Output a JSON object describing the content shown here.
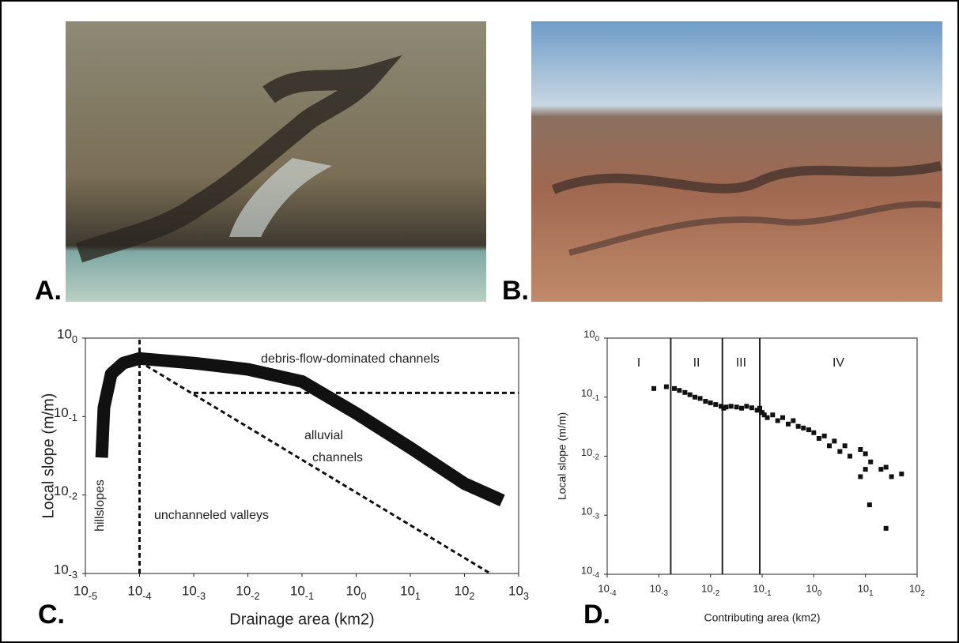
{
  "panel_labels": [
    "A.",
    "B.",
    "C.",
    "D."
  ],
  "chart_data": [
    {
      "type": "line",
      "log": true,
      "ylabel": "Local slope (m/m)",
      "xlabel": "Drainage area (km2)",
      "xlim": [
        1e-05,
        1000
      ],
      "ylim": [
        0.001,
        1
      ],
      "xticks": [
        {
          "value": 1e-05,
          "label": "10",
          "exponent": "-5"
        },
        {
          "value": 0.0001,
          "label": "10",
          "exponent": "-4"
        },
        {
          "value": 0.001,
          "label": "10",
          "exponent": "-3"
        },
        {
          "value": 0.01,
          "label": "10",
          "exponent": "-2"
        },
        {
          "value": 0.1,
          "label": "10",
          "exponent": "-1"
        },
        {
          "value": 1,
          "label": "10",
          "exponent": "0"
        },
        {
          "value": 10,
          "label": "10",
          "exponent": "1"
        },
        {
          "value": 100,
          "label": "10",
          "exponent": "2"
        },
        {
          "value": 1000,
          "label": "10",
          "exponent": "3"
        }
      ],
      "yticks": [
        {
          "value": 0.001,
          "label": "10",
          "exponent": "-3"
        },
        {
          "value": 0.01,
          "label": "10",
          "exponent": "-2"
        },
        {
          "value": 0.1,
          "label": "10",
          "exponent": "-1"
        },
        {
          "value": 1,
          "label": "10",
          "exponent": "0"
        }
      ],
      "series": [
        {
          "color": "#111",
          "style": "thick",
          "x": [
            2e-05,
            2.2e-05,
            3e-05,
            5e-05,
            0.0001,
            0.001,
            0.01,
            0.1,
            1,
            10,
            100,
            500
          ],
          "values": [
            0.03,
            0.13,
            0.35,
            0.48,
            0.55,
            0.48,
            0.4,
            0.28,
            0.11,
            0.04,
            0.014,
            0.0085
          ]
        },
        {
          "color": "#111",
          "style": "dashed",
          "x": [
            0.0001,
            0.0001
          ],
          "values": [
            0.001,
            1
          ]
        },
        {
          "color": "#111",
          "style": "dashed",
          "x": [
            0.001,
            1000
          ],
          "values": [
            0.2,
            0.2
          ]
        },
        {
          "color": "#111",
          "style": "dashed",
          "x": [
            0.0001,
            300
          ],
          "values": [
            0.5,
            0.001
          ]
        }
      ],
      "annotations": [
        "debris-flow-dominated channels",
        "alluvial",
        "channels",
        "unchanneled valleys",
        "hillslopes"
      ]
    },
    {
      "type": "scatter",
      "log": true,
      "ylabel": "Local slope (m/m)",
      "xlabel": "Contributing area (km2)",
      "xlim": [
        0.0001,
        100
      ],
      "ylim": [
        0.0001,
        1
      ],
      "xticks": [
        {
          "value": 0.0001,
          "label": "10",
          "exponent": "-4"
        },
        {
          "value": 0.001,
          "label": "10",
          "exponent": "-3"
        },
        {
          "value": 0.01,
          "label": "10",
          "exponent": "-2"
        },
        {
          "value": 0.1,
          "label": "10",
          "exponent": "-1"
        },
        {
          "value": 1,
          "label": "10",
          "exponent": "0"
        },
        {
          "value": 10,
          "label": "10",
          "exponent": "1"
        },
        {
          "value": 100,
          "label": "10",
          "exponent": "2"
        }
      ],
      "yticks": [
        {
          "value": 0.0001,
          "label": "10",
          "exponent": "-4"
        },
        {
          "value": 0.001,
          "label": "10",
          "exponent": "-3"
        },
        {
          "value": 0.01,
          "label": "10",
          "exponent": "-2"
        },
        {
          "value": 0.1,
          "label": "10",
          "exponent": "-1"
        },
        {
          "value": 1,
          "label": "10",
          "exponent": "0"
        }
      ],
      "vlines": [
        0.0017,
        0.017,
        0.09
      ],
      "regions": [
        "I",
        "II",
        "III",
        "IV"
      ],
      "color": "#111",
      "x": [
        0.0008,
        0.0014,
        0.002,
        0.0025,
        0.0032,
        0.004,
        0.005,
        0.0063,
        0.008,
        0.01,
        0.0126,
        0.016,
        0.018,
        0.02,
        0.025,
        0.032,
        0.04,
        0.05,
        0.063,
        0.08,
        0.09,
        0.1,
        0.11,
        0.126,
        0.16,
        0.2,
        0.25,
        0.32,
        0.4,
        0.5,
        0.63,
        0.8,
        1,
        1.26,
        1.6,
        2,
        2.5,
        3.2,
        4,
        5,
        8,
        10,
        12.6,
        20,
        25,
        50,
        10,
        8,
        12,
        32,
        25
      ],
      "values": [
        0.14,
        0.15,
        0.14,
        0.13,
        0.12,
        0.11,
        0.1,
        0.095,
        0.085,
        0.08,
        0.075,
        0.07,
        0.065,
        0.068,
        0.07,
        0.068,
        0.065,
        0.07,
        0.066,
        0.06,
        0.065,
        0.055,
        0.05,
        0.045,
        0.05,
        0.04,
        0.045,
        0.035,
        0.04,
        0.032,
        0.03,
        0.028,
        0.025,
        0.02,
        0.022,
        0.015,
        0.018,
        0.012,
        0.015,
        0.01,
        0.013,
        0.011,
        0.008,
        0.006,
        0.0065,
        0.005,
        0.006,
        0.0045,
        0.0015,
        0.0045,
        0.0006
      ]
    }
  ]
}
